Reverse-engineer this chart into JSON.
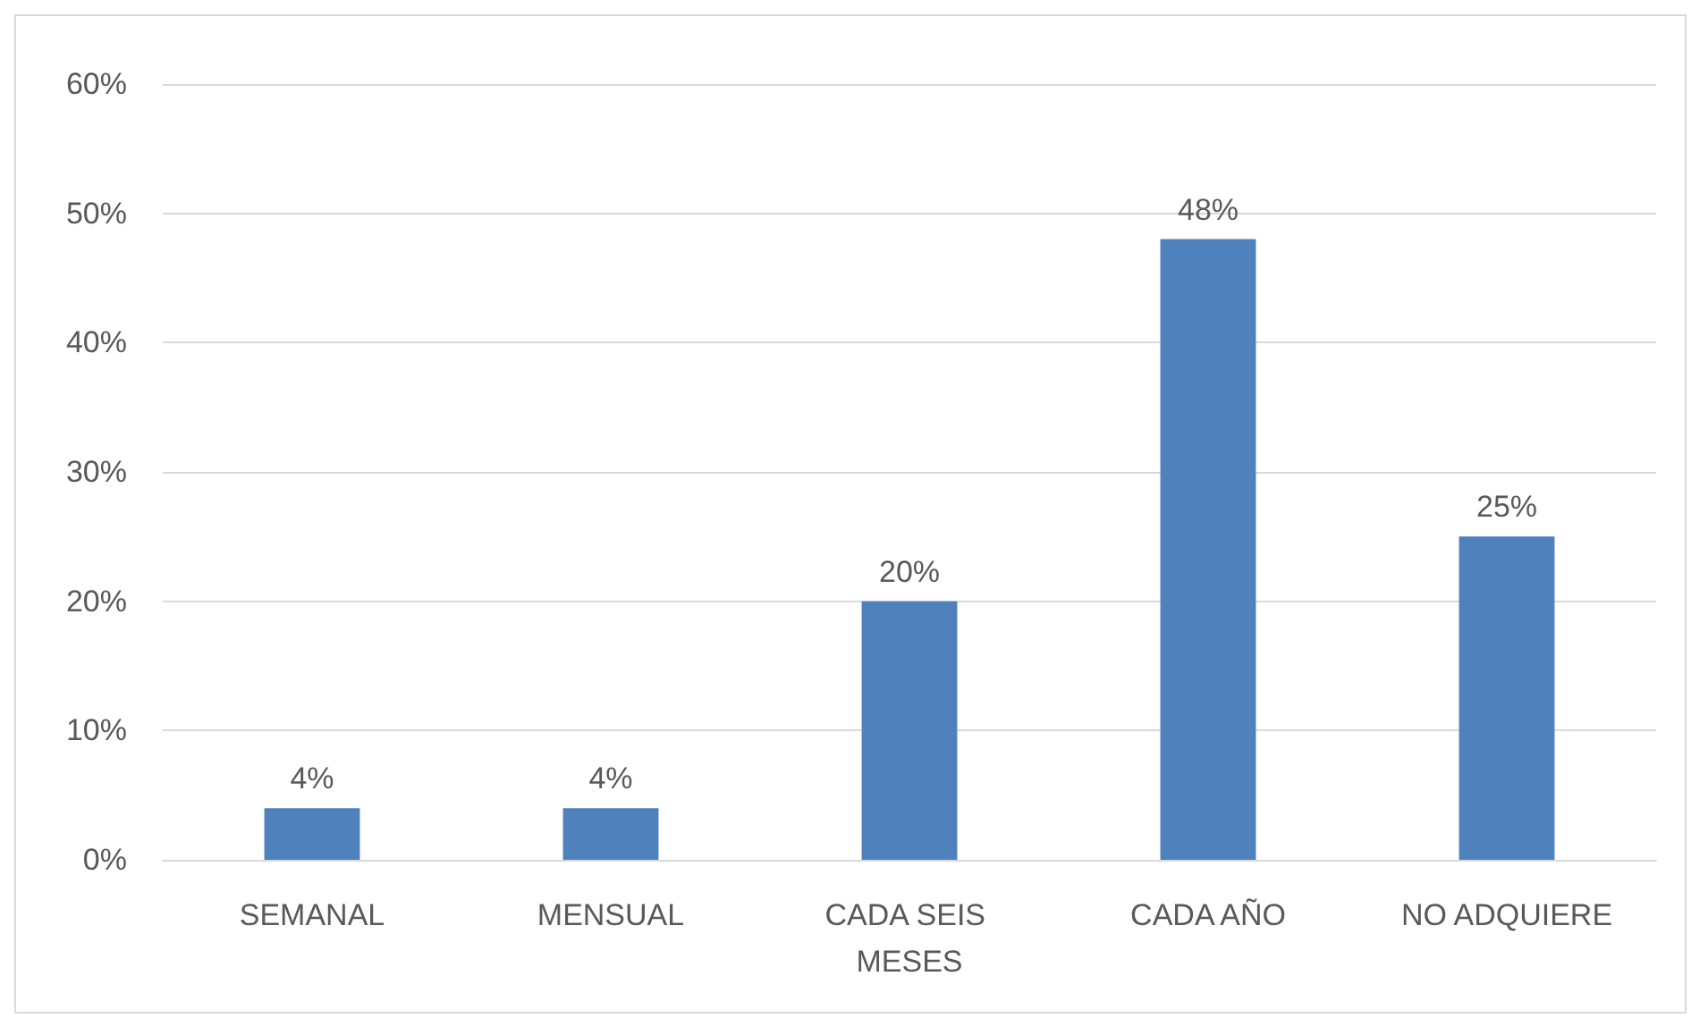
{
  "chart_data": {
    "type": "bar",
    "categories": [
      "SEMANAL",
      "MENSUAL",
      "CADA SEIS MESES",
      "CADA AÑO",
      "NO ADQUIERE"
    ],
    "values": [
      4,
      4,
      20,
      48,
      25
    ],
    "value_labels": [
      "4%",
      "4%",
      "20%",
      "48%",
      "25%"
    ],
    "color": "#4f81bd",
    "ylim": [
      0,
      60
    ],
    "yticks": [
      {
        "value": 0,
        "label": "0%"
      },
      {
        "value": 10,
        "label": "10%"
      },
      {
        "value": 20,
        "label": "20%"
      },
      {
        "value": 30,
        "label": "30%"
      },
      {
        "value": 40,
        "label": "40%"
      },
      {
        "value": 50,
        "label": "50%"
      },
      {
        "value": 60,
        "label": "60%"
      }
    ],
    "grid": "y"
  }
}
